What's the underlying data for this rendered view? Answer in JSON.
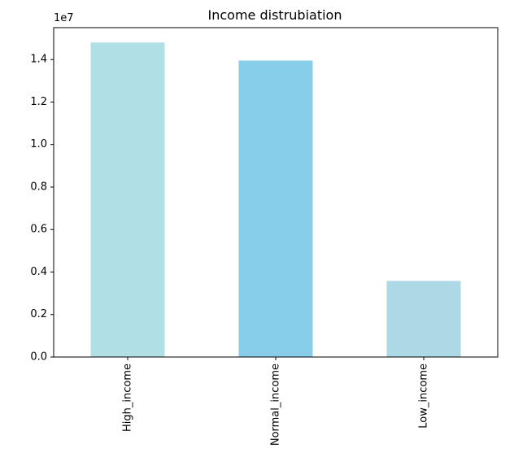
{
  "chart_data": {
    "type": "bar",
    "title": "Income distrubiation",
    "categories": [
      "High_income",
      "Normal_income",
      "Low_income"
    ],
    "values": [
      14800000,
      13950000,
      3580000
    ],
    "bar_colors": [
      "#b0e0e6",
      "#87ceeb",
      "#add8e6"
    ],
    "ylim": [
      0,
      15500000
    ],
    "yticks": [
      0,
      2000000,
      4000000,
      6000000,
      8000000,
      10000000,
      12000000,
      14000000
    ],
    "ytick_labels": [
      "0.0",
      "0.2",
      "0.4",
      "0.6",
      "0.8",
      "1.0",
      "1.2",
      "1.4"
    ],
    "y_offset_label": "1e7",
    "xlabel": "",
    "ylabel": "",
    "grid": false,
    "legend": "none"
  }
}
